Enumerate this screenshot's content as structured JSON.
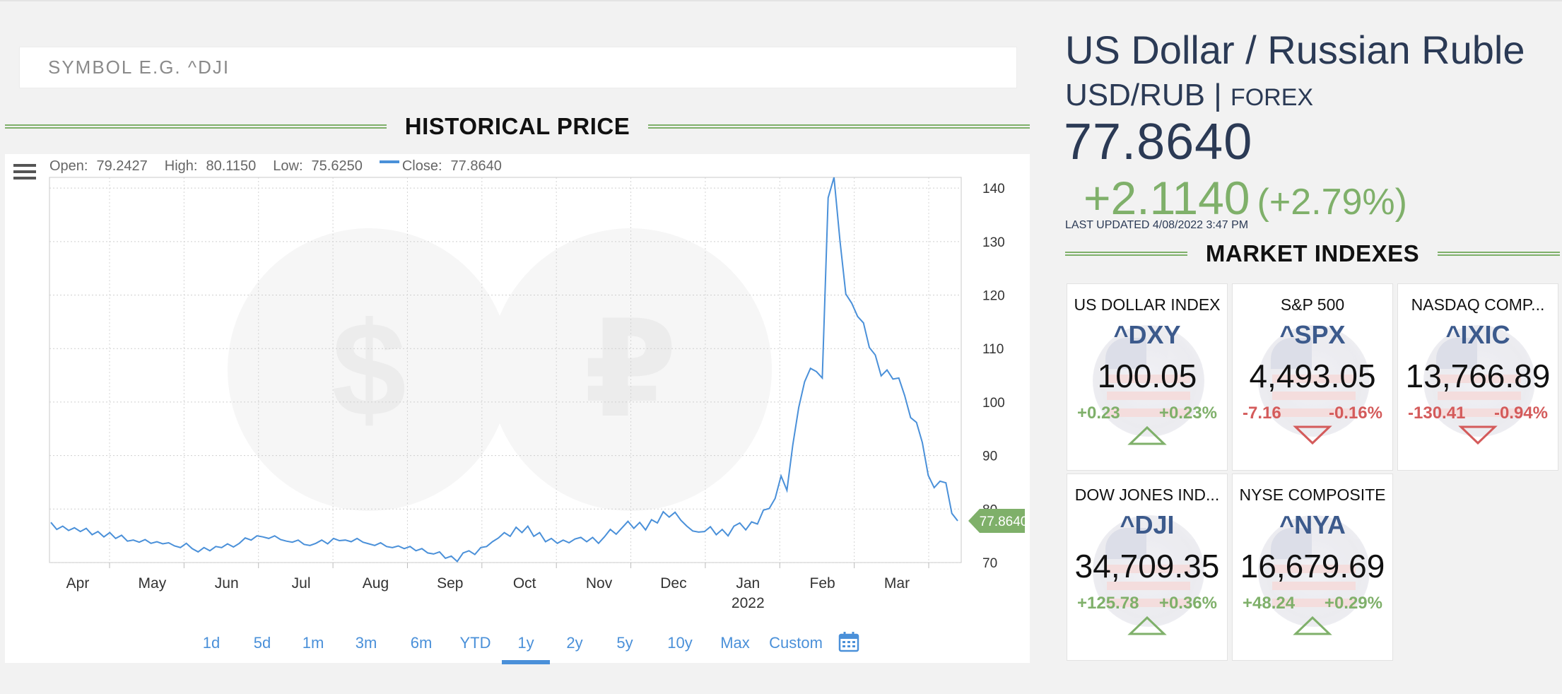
{
  "search": {
    "placeholder": "SYMBOL E.G. ^DJI"
  },
  "historical": {
    "title": "HISTORICAL PRICE",
    "ohlc": {
      "open_label": "Open:",
      "open": "79.2427",
      "high_label": "High:",
      "high": "80.1150",
      "low_label": "Low:",
      "low": "75.6250",
      "close_label": "Close:",
      "close": "77.8640"
    },
    "ranges": [
      "1d",
      "5d",
      "1m",
      "3m",
      "6m",
      "YTD",
      "1y",
      "2y",
      "5y",
      "10y",
      "Max",
      "Custom"
    ],
    "active_range": "1y",
    "line_color": "#4a90d9",
    "badge_color": "#7fb06a"
  },
  "chart_data": {
    "type": "line",
    "title": "",
    "xlabel": "",
    "ylabel": "",
    "ylim": [
      70,
      142
    ],
    "y_ticks": [
      70,
      80,
      90,
      100,
      110,
      120,
      130,
      140
    ],
    "x_ticks": [
      "Apr",
      "May",
      "Jun",
      "Jul",
      "Aug",
      "Sep",
      "Oct",
      "Nov",
      "Dec",
      "Jan",
      "Feb",
      "Mar"
    ],
    "x_sub_label": "2022",
    "current_label": "77.8640",
    "series": [
      {
        "values": [
          77.5,
          76.2,
          76.8,
          76,
          76.5,
          75.8,
          76.4,
          75.2,
          75.8,
          74.8,
          75.6,
          74.5,
          75.1,
          74,
          74.2,
          73.8,
          74.3,
          73.6,
          73.9,
          73.5,
          73.7,
          73.1,
          72.8,
          73.6,
          72.6,
          72,
          72.8,
          72.2,
          73,
          72.8,
          73.5,
          72.9,
          73.6,
          74.6,
          74.2,
          75,
          74.8,
          74.5,
          75,
          74.3,
          74,
          73.8,
          74.2,
          73.4,
          73.2,
          73.6,
          74.2,
          73.5,
          74.5,
          74.1,
          74.2,
          73.9,
          74.5,
          73.8,
          73.5,
          73.2,
          73.7,
          73,
          72.8,
          73.1,
          72.6,
          73,
          72.2,
          72.6,
          71.8,
          71.6,
          72,
          70.8,
          71.2,
          70.2,
          71.8,
          72.2,
          71.5,
          72.8,
          73,
          73.9,
          74.6,
          75.6,
          74.9,
          76.6,
          75.6,
          76.8,
          74.9,
          75.6,
          73.9,
          74.5,
          73.6,
          74.2,
          73.7,
          74.4,
          74.7,
          73.9,
          74.7,
          73.6,
          74.8,
          76.2,
          75.3,
          76.5,
          77.7,
          76.4,
          77.5,
          76.1,
          78,
          77.4,
          79.5,
          78.5,
          79.4,
          77.9,
          76.8,
          75.9,
          75.7,
          75.8,
          76.7,
          75.2,
          76.2,
          75,
          76.8,
          77.4,
          76.1,
          77.6,
          77.2,
          79.8,
          80.1,
          82,
          86.2,
          83.5,
          92,
          99,
          103.8,
          106.3,
          105.7,
          104.5,
          138.2,
          142,
          130.2,
          120.2,
          118.5,
          116,
          114.8,
          110.2,
          108.8,
          104.9,
          106,
          104.3,
          104.5,
          101.2,
          97.1,
          96.2,
          92.4,
          86.3,
          84,
          85.2,
          84.9,
          79.2,
          77.8
        ]
      }
    ]
  },
  "quote": {
    "name": "US Dollar / Russian Ruble",
    "pair": "USD/RUB",
    "separator": "|",
    "exchange": "FOREX",
    "price": "77.8640",
    "change": "+2.1140",
    "change_pct": "(+2.79%)",
    "updated": "LAST UPDATED 4/08/2022 3:47 PM",
    "positive_color": "#7fb06a",
    "negative_color": "#d45b5b"
  },
  "market": {
    "title": "MARKET INDEXES",
    "indexes": [
      {
        "name": "US DOLLAR INDEX",
        "symbol": "^DXY",
        "value": "100.05",
        "change": "+0.23",
        "change_pct": "+0.23%",
        "direction": "up"
      },
      {
        "name": "S&P 500",
        "symbol": "^SPX",
        "value": "4,493.05",
        "change": "-7.16",
        "change_pct": "-0.16%",
        "direction": "down"
      },
      {
        "name": "NASDAQ COMP...",
        "symbol": "^IXIC",
        "value": "13,766.89",
        "change": "-130.41",
        "change_pct": "-0.94%",
        "direction": "down"
      },
      {
        "name": "DOW JONES IND...",
        "symbol": "^DJI",
        "value": "34,709.35",
        "change": "+125.78",
        "change_pct": "+0.36%",
        "direction": "up"
      },
      {
        "name": "NYSE COMPOSITE",
        "symbol": "^NYA",
        "value": "16,679.69",
        "change": "+48.24",
        "change_pct": "+0.29%",
        "direction": "up"
      }
    ]
  }
}
